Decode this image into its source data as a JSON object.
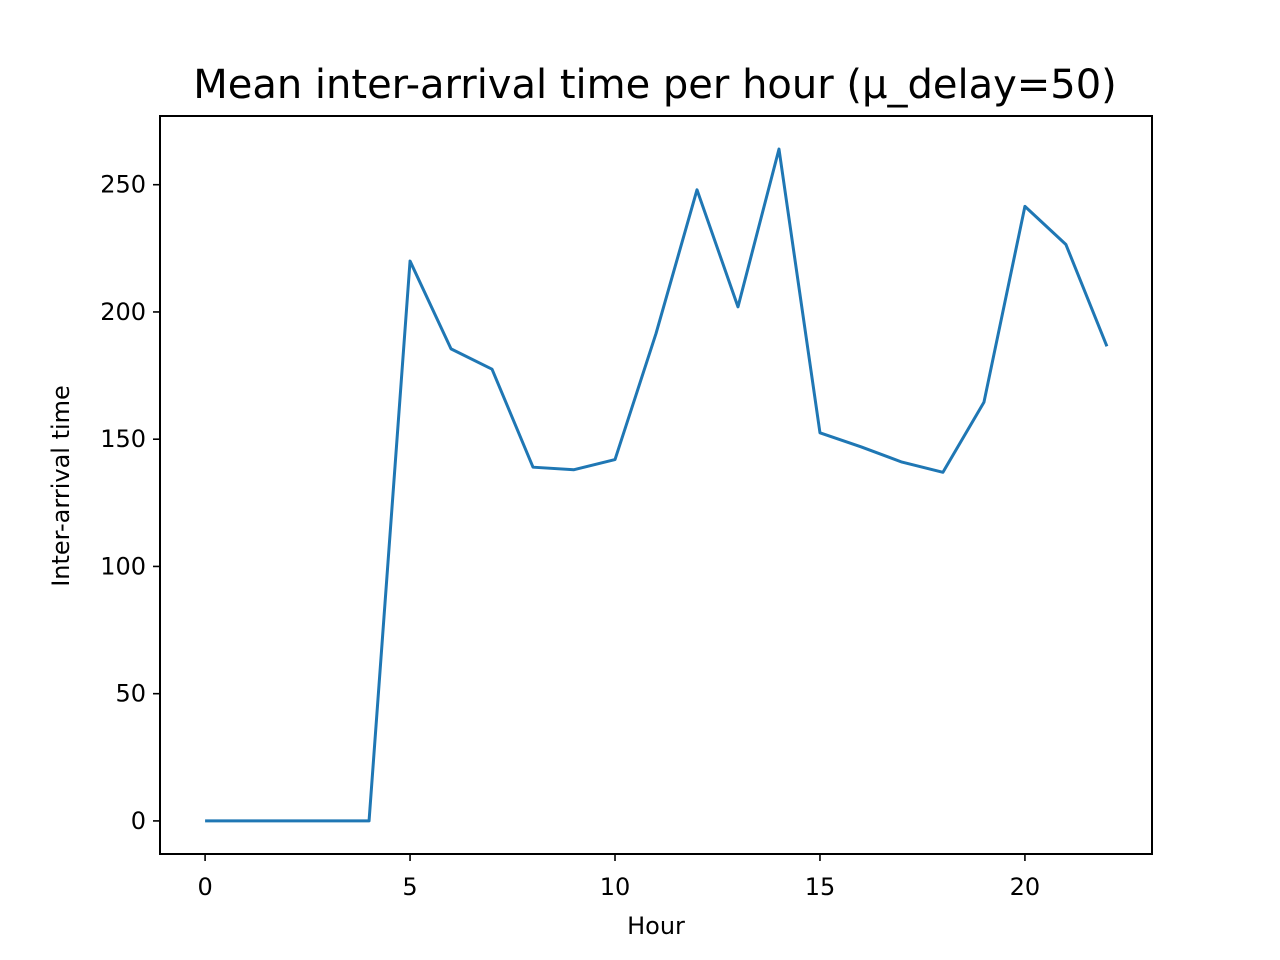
{
  "chart_data": {
    "type": "line",
    "title": "Mean inter-arrival time per hour (μ_delay=50)",
    "xlabel": "Hour",
    "ylabel": "Inter-arrival time",
    "xlim": [
      -1.1,
      23.1
    ],
    "ylim": [
      -13,
      277
    ],
    "xticks": [
      0,
      5,
      10,
      15,
      20
    ],
    "yticks": [
      0,
      50,
      100,
      150,
      200,
      250
    ],
    "grid": false,
    "line_color": "#1f77b4",
    "series": [
      {
        "x": [
          0,
          1,
          2,
          3,
          4,
          5,
          6,
          7,
          8,
          9,
          10,
          11,
          12,
          13,
          14,
          15,
          16,
          17,
          18,
          19,
          20,
          21,
          22
        ],
        "values": [
          0,
          0,
          0,
          0,
          0,
          220,
          185.5,
          177.5,
          139,
          138,
          142,
          191.5,
          248,
          202,
          264,
          152.5,
          147,
          141,
          137,
          164.5,
          241.5,
          226.5,
          186.5
        ]
      }
    ]
  }
}
